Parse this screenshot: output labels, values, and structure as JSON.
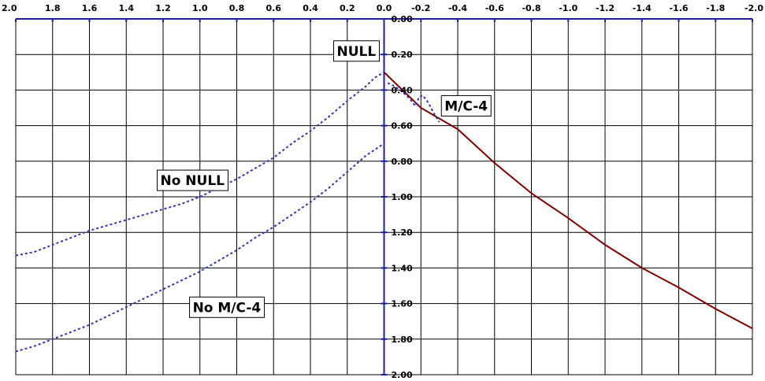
{
  "chart_data": {
    "type": "line",
    "title": "",
    "xlabel": "",
    "ylabel": "",
    "xlim": [
      2.0,
      -2.0
    ],
    "ylim": [
      0.0,
      2.0
    ],
    "y_inverted": true,
    "grid": true,
    "legend": "none",
    "x_ticks": [
      "2.0",
      "1.8",
      "1.6",
      "1.4",
      "1.2",
      "1.0",
      "0.8",
      "0.6",
      "0.4",
      "0.2",
      "0.0",
      "-0.2",
      "-0.4",
      "-0.6",
      "-0.8",
      "-1.0",
      "-1.2",
      "-1.4",
      "-1.6",
      "-1.8",
      "-2.0"
    ],
    "y_ticks": [
      "0.00",
      "0.20",
      "0.40",
      "0.60",
      "0.80",
      "1.00",
      "1.20",
      "1.40",
      "1.60",
      "1.80",
      "2.00"
    ],
    "colors": {
      "grid": "#000000",
      "axis": "#1c1ca8",
      "solid_series": "#800000",
      "dashed_series": "#3333bb"
    },
    "series": [
      {
        "name": "NULL",
        "style": "solid",
        "x": [
          0.0,
          -0.1,
          -0.2,
          -0.3,
          -0.4,
          -0.6,
          -0.8,
          -1.0,
          -1.2,
          -1.4,
          -1.6,
          -1.8,
          -2.0
        ],
        "y": [
          0.3,
          0.4,
          0.5,
          0.56,
          0.62,
          0.81,
          0.98,
          1.12,
          1.27,
          1.4,
          1.51,
          1.63,
          1.74
        ]
      },
      {
        "name": "No NULL",
        "style": "dashed",
        "x": [
          2.0,
          1.9,
          1.8,
          1.7,
          1.6,
          1.5,
          1.4,
          1.3,
          1.2,
          1.1,
          1.0,
          0.9,
          0.8,
          0.7,
          0.6,
          0.5,
          0.4,
          0.3,
          0.2,
          0.1,
          0.05,
          0.0
        ],
        "y": [
          1.33,
          1.31,
          1.27,
          1.23,
          1.19,
          1.16,
          1.13,
          1.1,
          1.07,
          1.04,
          1.0,
          0.95,
          0.9,
          0.84,
          0.78,
          0.7,
          0.63,
          0.55,
          0.46,
          0.38,
          0.33,
          0.3
        ]
      },
      {
        "name": "No M/C-4",
        "style": "dashed",
        "x": [
          2.0,
          1.9,
          1.8,
          1.7,
          1.6,
          1.5,
          1.4,
          1.3,
          1.2,
          1.1,
          1.0,
          0.9,
          0.8,
          0.7,
          0.6,
          0.5,
          0.4,
          0.3,
          0.2,
          0.1,
          0.0
        ],
        "y": [
          1.87,
          1.84,
          1.8,
          1.76,
          1.72,
          1.67,
          1.62,
          1.57,
          1.52,
          1.47,
          1.42,
          1.36,
          1.3,
          1.23,
          1.17,
          1.1,
          1.03,
          0.95,
          0.86,
          0.77,
          0.7
        ]
      },
      {
        "name": "M/C-4",
        "style": "dashed",
        "x": [
          -0.02,
          -0.06,
          -0.1,
          -0.14,
          -0.17,
          -0.19,
          -0.21,
          -0.24,
          -0.27,
          -0.3
        ],
        "y": [
          0.36,
          0.38,
          0.41,
          0.45,
          0.49,
          0.44,
          0.43,
          0.47,
          0.53,
          0.58
        ]
      }
    ],
    "annotations": [
      {
        "text": "NULL",
        "x": 0.0,
        "y": 0.3
      },
      {
        "text": "M/C-4",
        "x": -0.2,
        "y": 0.44
      },
      {
        "text": "No NULL",
        "x": 0.83,
        "y": 0.85
      },
      {
        "text": "No M/C-4",
        "x": 0.65,
        "y": 1.55
      }
    ]
  }
}
